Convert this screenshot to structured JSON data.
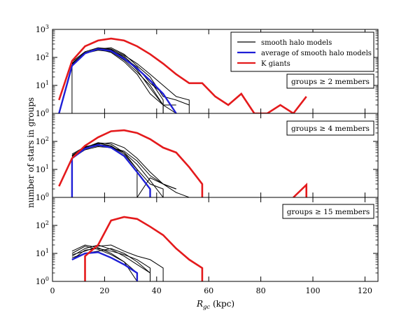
{
  "chart_data": {
    "type": "line",
    "xlabel": "R_gc (kpc)",
    "xlabel_main": "R",
    "xlabel_sub": "gc",
    "xlabel_unit": " (kpc)",
    "ylabel": "number of stars in groups",
    "xlim": [
      0,
      125
    ],
    "ylim": [
      1,
      1000
    ],
    "yscale": "log",
    "x_ticks": [
      0,
      20,
      40,
      60,
      80,
      100,
      120
    ],
    "x_tick_labels": [
      "0",
      "20",
      "40",
      "60",
      "80",
      "100",
      "120"
    ],
    "legend": {
      "placement": "top-right of top panel",
      "entries": [
        {
          "label": "smooth halo models",
          "color": "#000000"
        },
        {
          "label": "average of smooth halo models",
          "color": "#1f1fd6"
        },
        {
          "label": "K giants",
          "color": "#e41a1c"
        }
      ]
    },
    "panels": [
      {
        "annotation": "groups ≥ 2 members",
        "y_ticks": [
          1,
          10,
          100,
          1000
        ],
        "y_tick_labels": [
          {
            "base": "10",
            "exp": "0"
          },
          {
            "base": "10",
            "exp": "1"
          },
          {
            "base": "10",
            "exp": "2"
          },
          {
            "base": "10",
            "exp": "3"
          }
        ],
        "series": [
          {
            "name": "K giants",
            "role": "kgiants",
            "x": [
              2.5,
              7.5,
              12.5,
              17.5,
              22.5,
              27.5,
              32.5,
              37.5,
              42.5,
              47.5,
              52.5,
              57.5,
              62.5,
              67.5,
              72.5,
              77.5,
              82.5,
              87.5,
              92.5,
              97.5
            ],
            "y": [
              3,
              75,
              250,
              400,
              470,
              400,
              250,
              130,
              60,
              25,
              12,
              12,
              4,
              2,
              5,
              1,
              1,
              2,
              1,
              4
            ]
          },
          {
            "name": "average of smooth halo models",
            "role": "average",
            "x": [
              2.5,
              7.5,
              12.5,
              17.5,
              22.5,
              27.5,
              32.5,
              37.5,
              42.5,
              47.5
            ],
            "y": [
              1,
              50,
              140,
              200,
              170,
              90,
              40,
              15,
              5,
              1
            ]
          },
          {
            "name": "smooth halo model 1",
            "role": "model",
            "x": [
              7.5,
              7.5,
              12.5,
              17.5,
              22.5,
              27.5,
              32.5,
              37.5,
              42.5,
              42.5
            ],
            "y": [
              1,
              50,
              140,
              180,
              160,
              80,
              30,
              10,
              2,
              1
            ]
          },
          {
            "name": "smooth halo model 2",
            "role": "model",
            "x": [
              7.5,
              12.5,
              17.5,
              22.5,
              27.5,
              32.5,
              37.5,
              42.5,
              47.5,
              52.5,
              52.5
            ],
            "y": [
              70,
              160,
              220,
              200,
              120,
              60,
              25,
              10,
              4,
              3,
              1
            ]
          },
          {
            "name": "smooth halo model 3",
            "role": "model",
            "x": [
              7.5,
              12.5,
              17.5,
              22.5,
              27.5,
              32.5,
              37.5,
              42.5,
              47.5,
              52.5
            ],
            "y": [
              60,
              150,
              200,
              220,
              130,
              50,
              20,
              4,
              3,
              2
            ]
          },
          {
            "name": "smooth halo model 4",
            "role": "model",
            "x": [
              7.5,
              12.5,
              17.5,
              22.5,
              27.5,
              32.5,
              37.5,
              42.5,
              42.5
            ],
            "y": [
              55,
              140,
              190,
              180,
              110,
              40,
              15,
              3,
              1
            ]
          },
          {
            "name": "smooth halo model 5",
            "role": "model",
            "x": [
              7.5,
              12.5,
              17.5,
              22.5,
              27.5,
              32.5,
              37.5,
              42.5,
              47.5
            ],
            "y": [
              58,
              145,
              210,
              190,
              100,
              35,
              8,
              2,
              1
            ]
          },
          {
            "name": "smooth halo model 6",
            "role": "model",
            "x": [
              7.5,
              12.5,
              17.5,
              22.5,
              27.5,
              32.5,
              37.5,
              42.5,
              47.5
            ],
            "y": [
              62,
              150,
              200,
              150,
              70,
              25,
              5,
              2,
              2
            ]
          },
          {
            "name": "smooth halo model 7",
            "role": "model",
            "x": [
              7.5,
              12.5,
              17.5,
              22.5,
              27.5,
              32.5,
              37.5,
              42.5,
              47.5
            ],
            "y": [
              50,
              135,
              195,
              170,
              95,
              45,
              12,
              5,
              1
            ]
          }
        ]
      },
      {
        "annotation": "groups ≥ 4 members",
        "y_ticks": [
          1,
          10,
          100
        ],
        "y_tick_labels": [
          {
            "base": "10",
            "exp": "0"
          },
          {
            "base": "10",
            "exp": "1"
          },
          {
            "base": "10",
            "exp": "2"
          }
        ],
        "series": [
          {
            "name": "K giants",
            "role": "kgiants",
            "x": [
              2.5,
              7.5,
              12.5,
              17.5,
              22.5,
              27.5,
              32.5,
              37.5,
              42.5,
              47.5,
              52.5,
              57.5,
              57.5
            ],
            "y": [
              2.5,
              25,
              70,
              140,
              230,
              250,
              200,
              120,
              60,
              40,
              12,
              3,
              1
            ]
          },
          {
            "name": "K giants (outlier bin)",
            "role": "kgiants",
            "x": [
              92.5,
              97.5,
              97.5
            ],
            "y": [
              1,
              2.8,
              1
            ]
          },
          {
            "name": "average of smooth halo models",
            "role": "average",
            "x": [
              7.5,
              7.5,
              12.5,
              17.5,
              22.5,
              27.5,
              32.5,
              37.5,
              37.5
            ],
            "y": [
              1,
              25,
              55,
              75,
              60,
              30,
              8,
              2,
              1
            ]
          },
          {
            "name": "smooth halo model 1",
            "role": "model",
            "x": [
              7.5,
              12.5,
              17.5,
              22.5,
              27.5,
              32.5,
              37.5,
              42.5
            ],
            "y": [
              30,
              60,
              90,
              80,
              40,
              15,
              4,
              1
            ]
          },
          {
            "name": "smooth halo model 2",
            "role": "model",
            "x": [
              7.5,
              12.5,
              17.5,
              22.5,
              27.5,
              32.5,
              37.5,
              42.5,
              47.5
            ],
            "y": [
              35,
              65,
              80,
              90,
              60,
              25,
              8,
              3,
              2
            ]
          },
          {
            "name": "smooth halo model 3",
            "role": "model",
            "x": [
              7.5,
              12.5,
              17.5,
              22.5,
              27.5,
              32.5,
              32.5,
              37.5,
              42.5,
              47.5
            ],
            "y": [
              28,
              55,
              70,
              65,
              40,
              10,
              1,
              5,
              3,
              2
            ]
          },
          {
            "name": "smooth halo model 4",
            "role": "model",
            "x": [
              7.5,
              12.5,
              17.5,
              22.5,
              27.5,
              32.5,
              37.5,
              42.5,
              42.5
            ],
            "y": [
              32,
              62,
              85,
              70,
              35,
              10,
              3,
              2,
              1
            ]
          },
          {
            "name": "smooth halo model 5",
            "role": "model",
            "x": [
              7.5,
              12.5,
              17.5,
              22.5,
              27.5,
              32.5,
              37.5,
              42.5,
              47.5,
              52.5
            ],
            "y": [
              25,
              50,
              65,
              60,
              45,
              20,
              6,
              3,
              1.5,
              1
            ]
          },
          {
            "name": "smooth halo model 6",
            "role": "model",
            "x": [
              7.5,
              12.5,
              17.5,
              22.5,
              27.5,
              32.5,
              37.5,
              37.5
            ],
            "y": [
              30,
              58,
              75,
              70,
              30,
              8,
              2,
              1
            ]
          }
        ]
      },
      {
        "annotation": "groups ≥ 15 members",
        "y_ticks": [
          1,
          10,
          100
        ],
        "y_tick_labels": [
          {
            "base": "10",
            "exp": "0"
          },
          {
            "base": "10",
            "exp": "1"
          },
          {
            "base": "10",
            "exp": "2"
          }
        ],
        "series": [
          {
            "name": "K giants",
            "role": "kgiants",
            "x": [
              12.5,
              12.5,
              17.5,
              22.5,
              27.5,
              32.5,
              37.5,
              42.5,
              47.5,
              52.5,
              57.5,
              57.5
            ],
            "y": [
              1,
              8,
              20,
              150,
              200,
              170,
              90,
              45,
              15,
              6,
              3,
              1
            ]
          },
          {
            "name": "average of smooth halo models",
            "role": "average",
            "x": [
              7.5,
              12.5,
              17.5,
              22.5,
              27.5,
              32.5,
              32.5
            ],
            "y": [
              6,
              10,
              11,
              7,
              4,
              2,
              1
            ]
          },
          {
            "name": "smooth halo model 1",
            "role": "model",
            "x": [
              7.5,
              12.5,
              17.5,
              22.5,
              27.5,
              32.5
            ],
            "y": [
              10,
              18,
              14,
              9,
              5,
              2
            ]
          },
          {
            "name": "smooth halo model 2",
            "role": "model",
            "x": [
              7.5,
              12.5,
              17.5,
              22.5,
              27.5,
              32.5,
              37.5,
              37.5
            ],
            "y": [
              8,
              15,
              20,
              14,
              8,
              4,
              2,
              1
            ]
          },
          {
            "name": "smooth halo model 3",
            "role": "model",
            "x": [
              7.5,
              12.5,
              17.5,
              22.5,
              27.5,
              32.5
            ],
            "y": [
              12,
              20,
              16,
              10,
              5,
              1
            ]
          },
          {
            "name": "smooth halo model 4",
            "role": "model",
            "x": [
              7.5,
              12.5,
              17.5,
              22.5,
              27.5,
              32.5,
              37.5,
              42.5,
              42.5
            ],
            "y": [
              9,
              12,
              18,
              20,
              12,
              8,
              6,
              3,
              1
            ]
          },
          {
            "name": "smooth halo model 5",
            "role": "model",
            "x": [
              7.5,
              12.5,
              17.5,
              22.5,
              27.5,
              32.5,
              37.5
            ],
            "y": [
              7,
              10,
              12,
              15,
              10,
              5,
              2
            ]
          },
          {
            "name": "smooth halo model 6",
            "role": "model",
            "x": [
              7.5,
              12.5,
              17.5,
              22.5,
              27.5,
              32.5,
              37.5,
              37.5
            ],
            "y": [
              6,
              13,
              15,
              12,
              9,
              6,
              3,
              1
            ]
          }
        ]
      }
    ]
  }
}
